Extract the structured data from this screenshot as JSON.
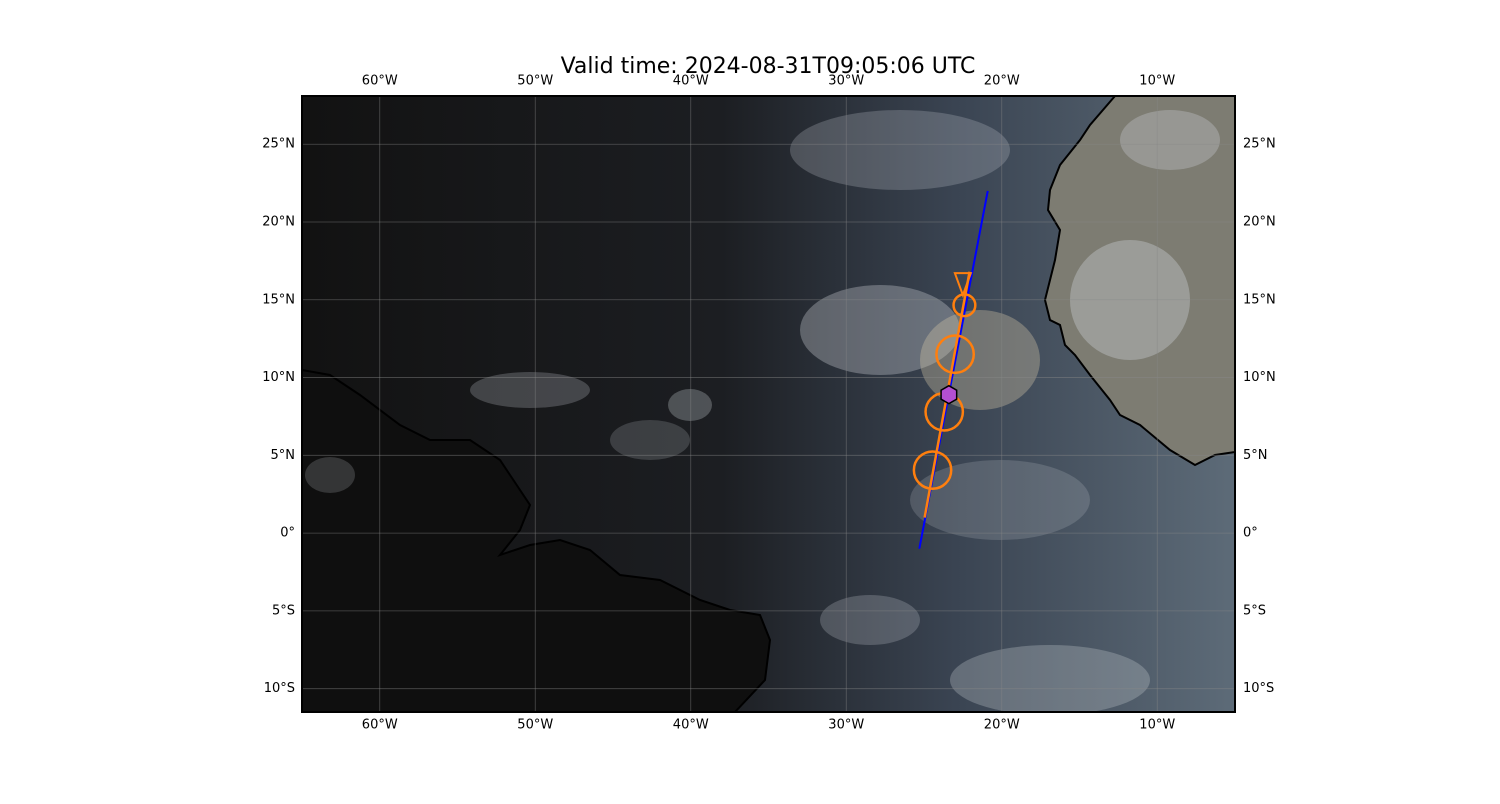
{
  "title": "Valid time: 2024-08-31T09:05:06 UTC",
  "map": {
    "lonlim": [
      -65,
      -5
    ],
    "latlim": [
      -11.5,
      28.1
    ],
    "grid": true,
    "lonticks": [
      {
        "value": -60,
        "label": "60°W"
      },
      {
        "value": -50,
        "label": "50°W"
      },
      {
        "value": -40,
        "label": "40°W"
      },
      {
        "value": -30,
        "label": "30°W"
      },
      {
        "value": -20,
        "label": "20°W"
      },
      {
        "value": -10,
        "label": "10°W"
      }
    ],
    "latticks": [
      {
        "value": 25,
        "label": "25°N"
      },
      {
        "value": 20,
        "label": "20°N"
      },
      {
        "value": 15,
        "label": "15°N"
      },
      {
        "value": 10,
        "label": "10°N"
      },
      {
        "value": 5,
        "label": "5°N"
      },
      {
        "value": 0,
        "label": "0°"
      },
      {
        "value": -5,
        "label": "5°S"
      },
      {
        "value": -10,
        "label": "10°S"
      }
    ],
    "track": {
      "color": "#0000ff",
      "lon": [
        -25.3,
        -20.9
      ],
      "lat": [
        -1.0,
        22.0
      ]
    },
    "segment": {
      "color": "#ff7f0e",
      "lon": [
        -24.96,
        -22.07
      ],
      "lat": [
        1.0,
        16.8
      ]
    },
    "circles": {
      "color": "#ff7f0e",
      "lon": [
        -22.4,
        -23.0,
        -23.7,
        -24.45
      ],
      "lat": [
        14.65,
        11.5,
        7.8,
        4.05
      ],
      "radius": [
        0.7,
        1.2,
        1.2,
        1.2
      ]
    },
    "triangle": {
      "color": "#ff7f0e",
      "lon": -22.5,
      "lat": 16.2
    },
    "hexagon": {
      "color": "#b44fd0",
      "lon": -23.4,
      "lat": 8.9
    }
  }
}
